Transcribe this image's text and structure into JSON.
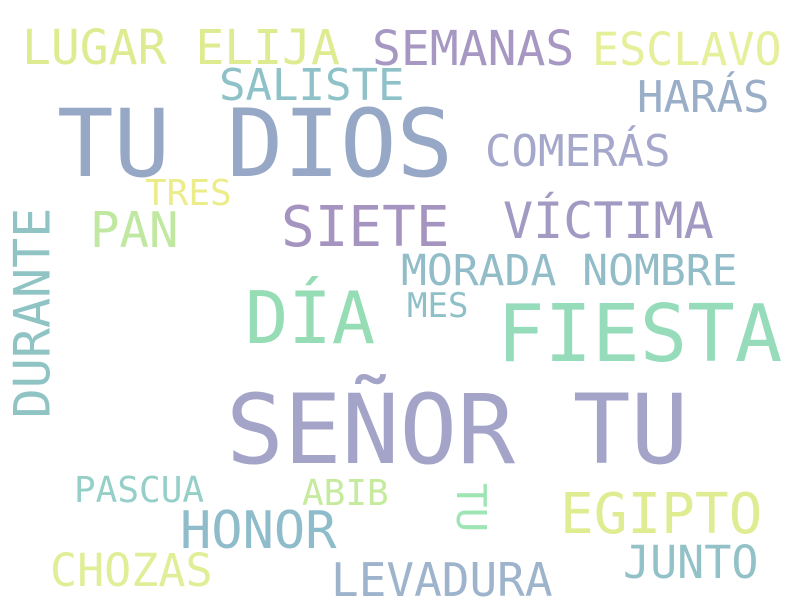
{
  "palette": {
    "background": "#ffffff",
    "slate_blue": "#97a7c6",
    "lavender": "#9f94c0",
    "mint": "#95dbb2",
    "teal": "#8ec0c4",
    "lime": "#c1e89c",
    "yellow": "#e6ea8a"
  },
  "words": [
    {
      "text": "TU DIOS",
      "color": "#97a7c6",
      "vertical": false
    },
    {
      "text": "SEÑOR TU",
      "color": "#a4a4c8",
      "vertical": false
    },
    {
      "text": "FIESTA",
      "color": "#96dcbb",
      "vertical": false
    },
    {
      "text": "DÍA",
      "color": "#96dcb4",
      "vertical": false
    },
    {
      "text": "SIETE",
      "color": "#a694c0",
      "vertical": false
    },
    {
      "text": "VÍCTIMA",
      "color": "#a29ac2",
      "vertical": false
    },
    {
      "text": "SEMANAS",
      "color": "#a698c2",
      "vertical": false
    },
    {
      "text": "LUGAR ELIJA",
      "color": "#dfeb90",
      "vertical": false
    },
    {
      "text": "ESCLAVO",
      "color": "#e6ef9a",
      "vertical": false
    },
    {
      "text": "SALISTE",
      "color": "#8fc2c8",
      "vertical": false
    },
    {
      "text": "HARÁS",
      "color": "#9aaec8",
      "vertical": false
    },
    {
      "text": "COMERÁS",
      "color": "#a5a8ca",
      "vertical": false
    },
    {
      "text": "TRES",
      "color": "#ecec8a",
      "vertical": false
    },
    {
      "text": "PAN",
      "color": "#c1e8a0",
      "vertical": false
    },
    {
      "text": "DURANTE",
      "color": "#90c4c4",
      "vertical": true
    },
    {
      "text": "MORADA NOMBRE",
      "color": "#92bcc8",
      "vertical": false
    },
    {
      "text": "MES",
      "color": "#8fc0c8",
      "vertical": false
    },
    {
      "text": "PASCUA",
      "color": "#96cfc8",
      "vertical": false
    },
    {
      "text": "ABIB",
      "color": "#c6ea9e",
      "vertical": false
    },
    {
      "text": "TU",
      "color": "#9fe4b4",
      "vertical": true
    },
    {
      "text": "EGIPTO",
      "color": "#e0ec92",
      "vertical": false
    },
    {
      "text": "HONOR",
      "color": "#8fbcca",
      "vertical": false
    },
    {
      "text": "JUNTO",
      "color": "#92c2c8",
      "vertical": false
    },
    {
      "text": "CHOZAS",
      "color": "#e0ee98",
      "vertical": false
    },
    {
      "text": "LEVADURA",
      "color": "#9eb4cc",
      "vertical": false
    }
  ]
}
